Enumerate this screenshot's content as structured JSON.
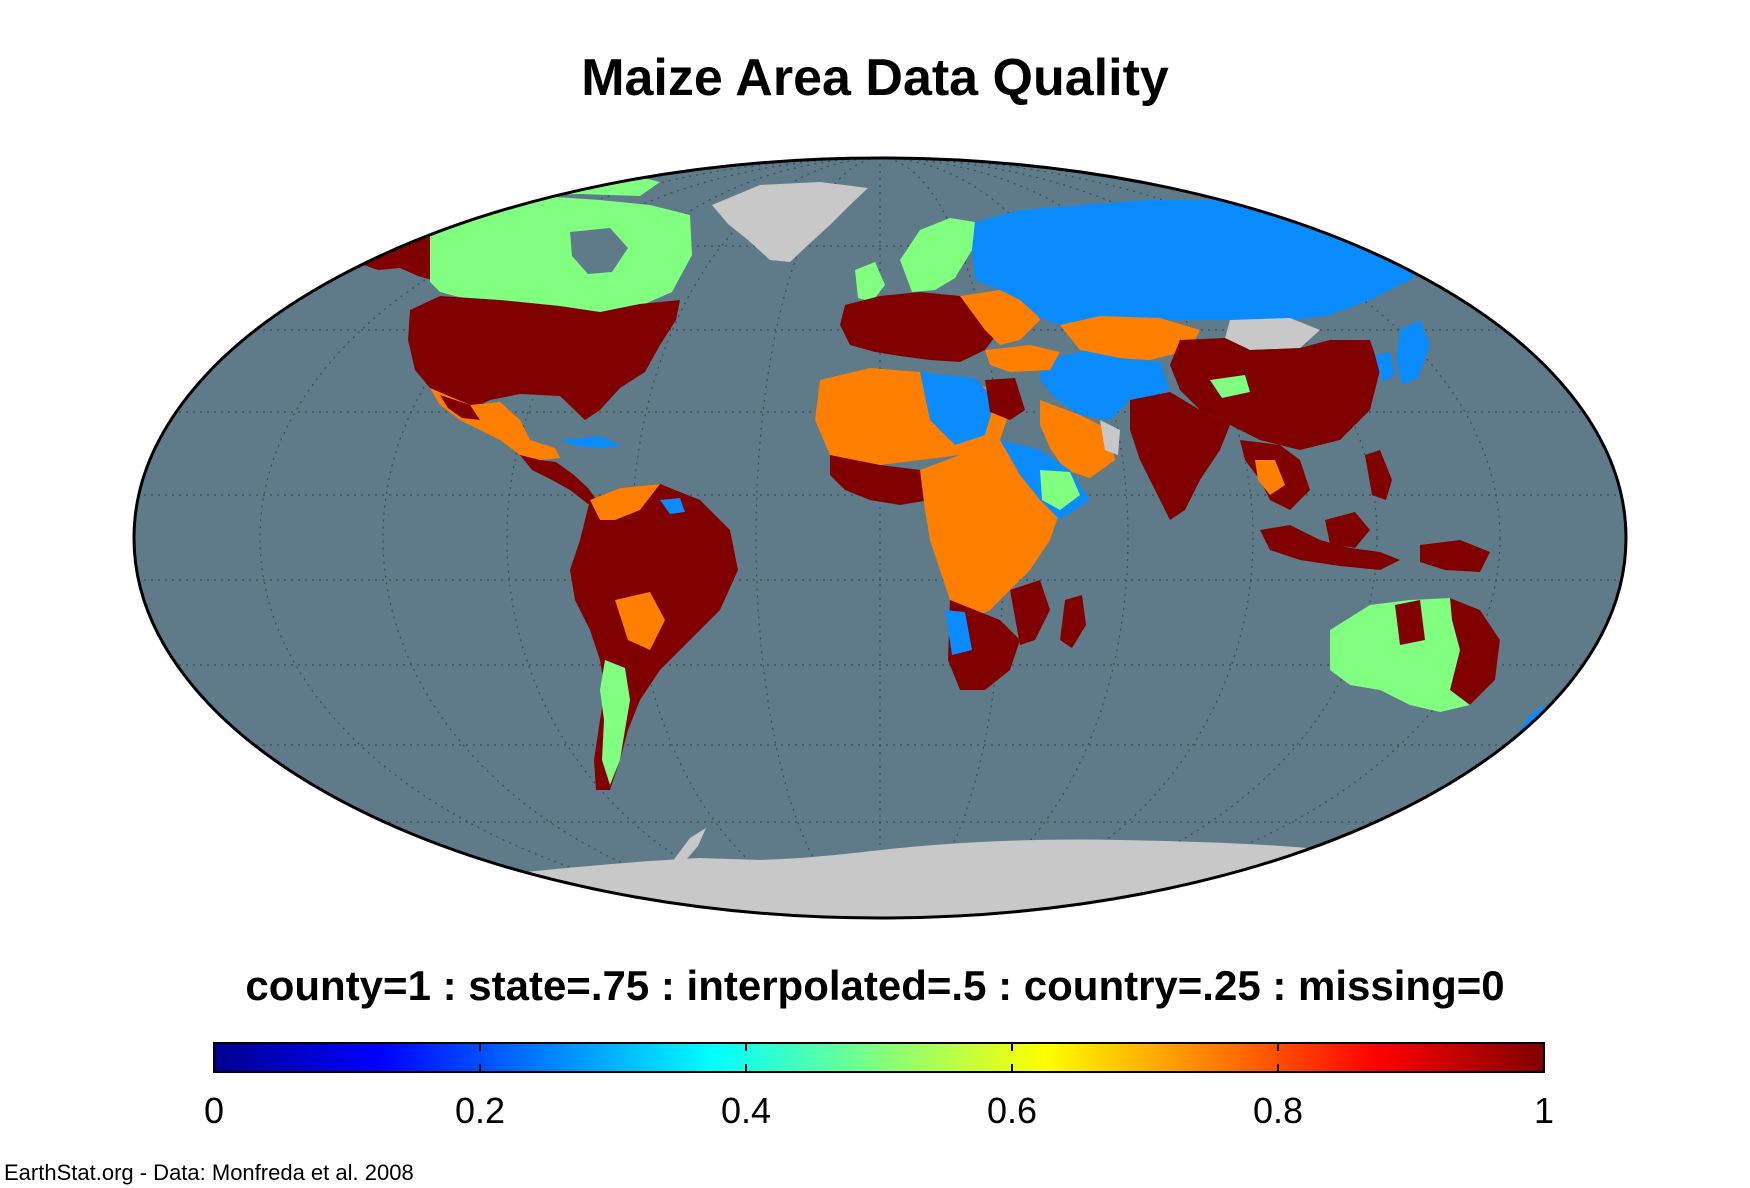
{
  "title": "Maize Area Data Quality",
  "legend": {
    "description": "county=1 : state=.75 : interpolated=.5 : country=.25 : missing=0",
    "categories": [
      {
        "label": "county",
        "value": 1
      },
      {
        "label": "state",
        "value": 0.75
      },
      {
        "label": "interpolated",
        "value": 0.5
      },
      {
        "label": "country",
        "value": 0.25
      },
      {
        "label": "missing",
        "value": 0
      }
    ],
    "colorbar": {
      "min": 0,
      "max": 1,
      "ticks": [
        "0",
        "0.2",
        "0.4",
        "0.6",
        "0.8",
        "1"
      ],
      "colormap": [
        "#00008f",
        "#0000ff",
        "#0080ff",
        "#00ffff",
        "#80ff80",
        "#ffff00",
        "#ff8000",
        "#ff0000",
        "#800000"
      ]
    }
  },
  "colors": {
    "ocean": "#5f7b8a",
    "no_data_land": "#c8c8c8",
    "county": "#800000",
    "state": "#ff8000",
    "interpolated": "#80ff80",
    "country": "#0a8cff"
  },
  "credit": "EarthStat.org - Data: Monfreda et al. 2008"
}
